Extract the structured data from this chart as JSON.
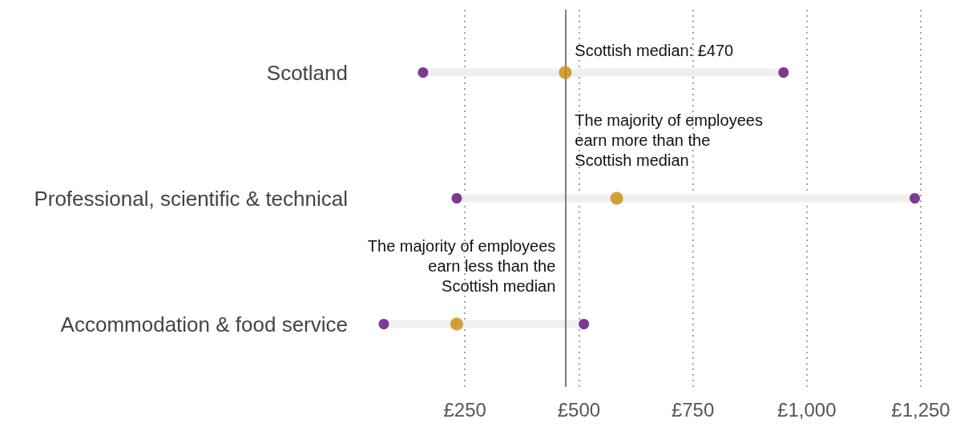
{
  "chart_data": {
    "type": "scatter",
    "orientation": "horizontal",
    "categories": [
      "Scotland",
      "Professional, scientific & technical",
      "Accommodation & food service"
    ],
    "series": [
      {
        "type": "bar",
        "color": "#efefef",
        "base": [
          158,
          232,
          72
        ],
        "values": [
          791,
          1005,
          439
        ]
      },
      {
        "color": "#5b0a7a",
        "values": [
          158,
          232,
          72
        ]
      },
      {
        "color": "#c98a0a",
        "values": [
          470,
          583,
          232
        ]
      },
      {
        "color": "#5b0a7a",
        "values": [
          949,
          1237,
          511
        ]
      }
    ],
    "xlim": [
      0,
      1250
    ],
    "xticks": [
      {
        "value": 250,
        "label": "£250"
      },
      {
        "value": 500,
        "label": "£500"
      },
      {
        "value": 750,
        "label": "£750"
      },
      {
        "value": 1000,
        "label": "£1,000"
      },
      {
        "value": 1250,
        "label": "£1,250"
      }
    ],
    "grid": "x",
    "marker": "circle",
    "ref_lines": [
      {
        "axis": "x",
        "value": 470,
        "label": "Scottish median: £470",
        "color": "#555555"
      }
    ],
    "annotations": [
      "The majority of employees\nearn more than the\nScottish median",
      "The majority of employees\nearn less than the\nScottish median"
    ]
  }
}
